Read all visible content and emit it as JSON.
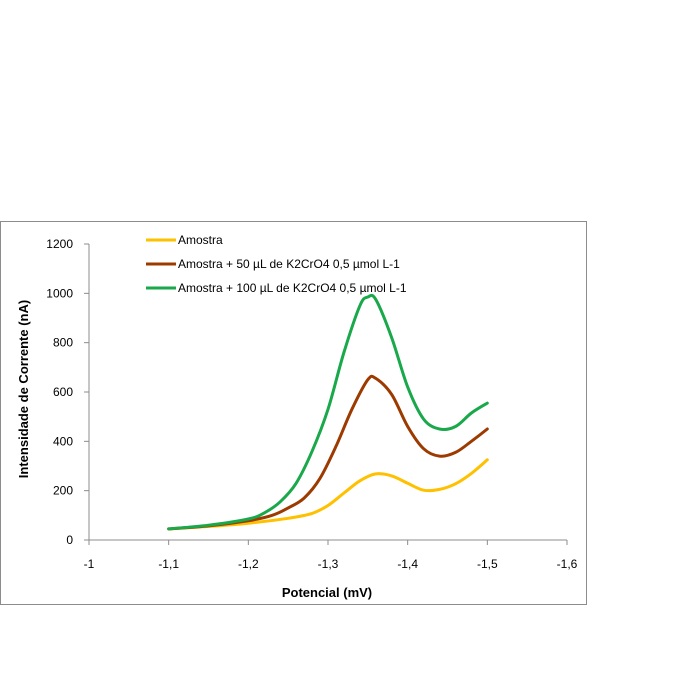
{
  "chart_data": {
    "type": "line",
    "xlabel": "Potencial (mV)",
    "ylabel": "Intensidade de Corrente (nA)",
    "xlim": [
      -1,
      -1.6
    ],
    "ylim": [
      0,
      1200
    ],
    "xticks": [
      -1,
      -1.1,
      -1.2,
      -1.3,
      -1.4,
      -1.5,
      -1.6
    ],
    "xtick_labels": [
      "-1",
      "-1,1",
      "-1,2",
      "-1,3",
      "-1,4",
      "-1,5",
      "-1,6"
    ],
    "yticks": [
      0,
      200,
      400,
      600,
      800,
      1000,
      1200
    ],
    "ytick_labels": [
      "0",
      "200",
      "400",
      "600",
      "800",
      "1000",
      "1200"
    ],
    "grid": false,
    "legend_position": "top",
    "series": [
      {
        "name": "Amostra",
        "color": "#ffc000",
        "points": [
          [
            -1.1,
            45
          ],
          [
            -1.15,
            55
          ],
          [
            -1.2,
            68
          ],
          [
            -1.25,
            88
          ],
          [
            -1.28,
            108
          ],
          [
            -1.3,
            140
          ],
          [
            -1.32,
            190
          ],
          [
            -1.34,
            240
          ],
          [
            -1.36,
            268
          ],
          [
            -1.38,
            260
          ],
          [
            -1.4,
            230
          ],
          [
            -1.42,
            202
          ],
          [
            -1.44,
            205
          ],
          [
            -1.46,
            228
          ],
          [
            -1.48,
            270
          ],
          [
            -1.5,
            325
          ]
        ]
      },
      {
        "name": "Amostra + 50 µL de K2CrO4 0,5 µmol L-1",
        "color": "#9c3a00",
        "points": [
          [
            -1.1,
            45
          ],
          [
            -1.15,
            57
          ],
          [
            -1.2,
            78
          ],
          [
            -1.23,
            100
          ],
          [
            -1.25,
            130
          ],
          [
            -1.27,
            170
          ],
          [
            -1.29,
            250
          ],
          [
            -1.31,
            380
          ],
          [
            -1.33,
            530
          ],
          [
            -1.35,
            650
          ],
          [
            -1.36,
            655
          ],
          [
            -1.38,
            590
          ],
          [
            -1.4,
            460
          ],
          [
            -1.42,
            370
          ],
          [
            -1.44,
            340
          ],
          [
            -1.46,
            355
          ],
          [
            -1.48,
            400
          ],
          [
            -1.5,
            450
          ]
        ]
      },
      {
        "name": "Amostra + 100 µL de K2CrO4 0,5 µmol L-1",
        "color": "#19a84a",
        "points": [
          [
            -1.1,
            45
          ],
          [
            -1.15,
            60
          ],
          [
            -1.2,
            85
          ],
          [
            -1.22,
            110
          ],
          [
            -1.24,
            155
          ],
          [
            -1.26,
            230
          ],
          [
            -1.28,
            360
          ],
          [
            -1.3,
            530
          ],
          [
            -1.32,
            760
          ],
          [
            -1.34,
            950
          ],
          [
            -1.35,
            985
          ],
          [
            -1.36,
            975
          ],
          [
            -1.38,
            820
          ],
          [
            -1.4,
            620
          ],
          [
            -1.42,
            490
          ],
          [
            -1.44,
            450
          ],
          [
            -1.46,
            460
          ],
          [
            -1.48,
            515
          ],
          [
            -1.5,
            555
          ]
        ]
      }
    ]
  }
}
